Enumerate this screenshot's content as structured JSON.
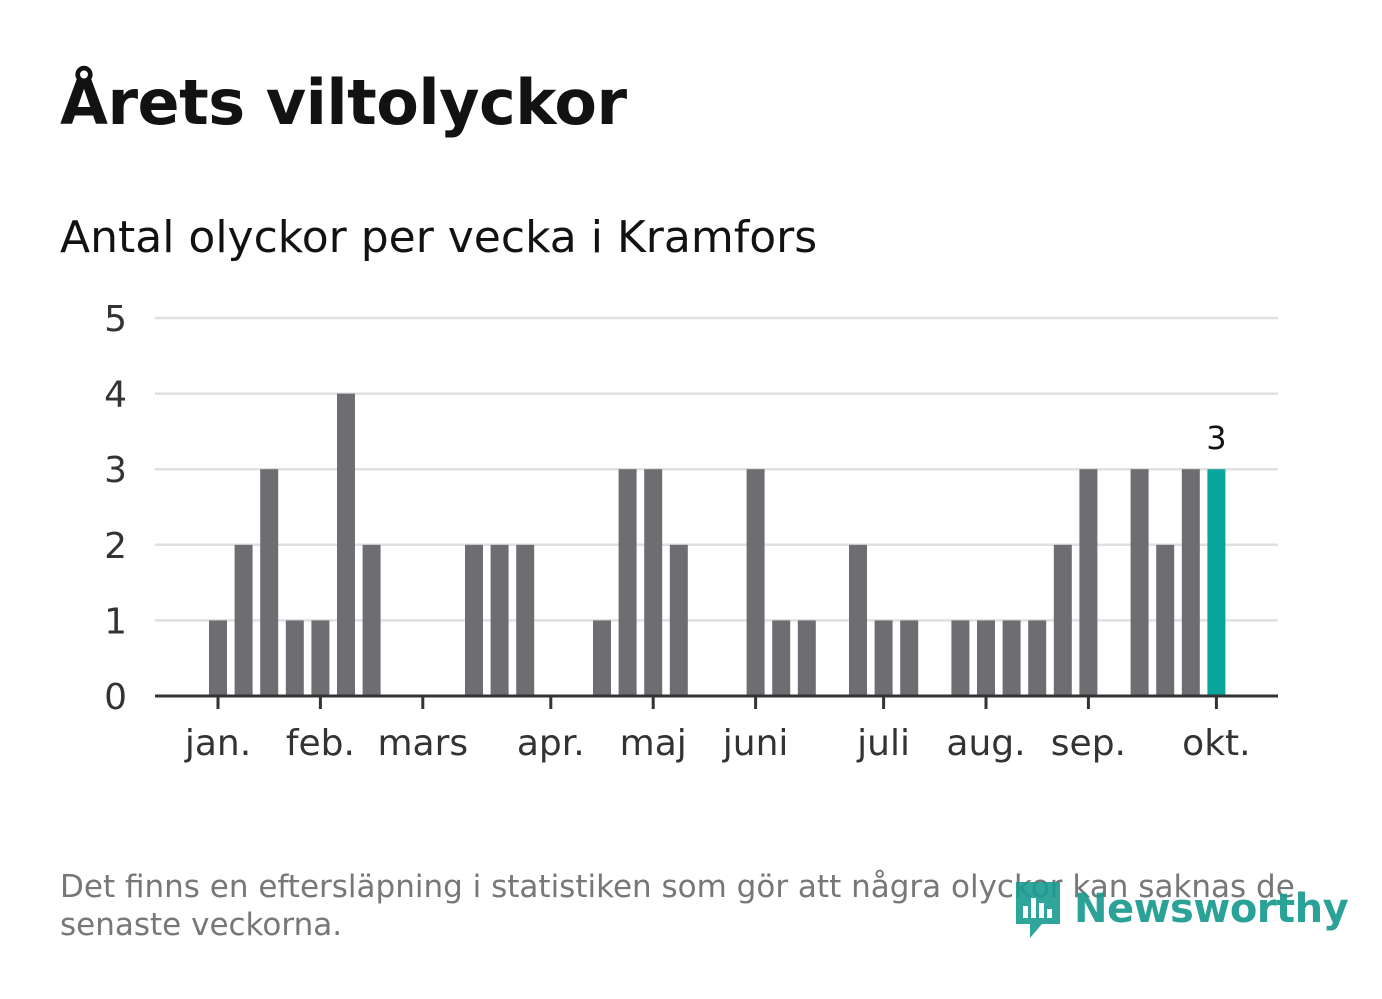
{
  "header": {
    "title": "Årets viltolyckor",
    "subtitle": "Antal olyckor per vecka i Kramfors"
  },
  "footer": {
    "note": "Det finns en eftersläpning i statistiken som gör att några olyckor kan saknas de senaste veckorna.",
    "brand": "Newsworthy"
  },
  "colors": {
    "bar": "#6e6d72",
    "highlight": "#0aa59a",
    "grid": "#e0e0e0",
    "axis": "#333333",
    "text": "#121212",
    "tick_text": "#333333"
  },
  "chart_data": {
    "type": "bar",
    "title": "Årets viltolyckor",
    "subtitle": "Antal olyckor per vecka i Kramfors",
    "xlabel": "",
    "ylabel": "",
    "ylim": [
      0,
      5
    ],
    "yticks": [
      0,
      1,
      2,
      3,
      4,
      5
    ],
    "grid": true,
    "weeks": [
      1,
      2,
      3,
      4,
      5,
      6,
      7,
      8,
      9,
      10,
      11,
      12,
      13,
      14,
      15,
      16,
      17,
      18,
      19,
      20,
      21,
      22,
      23,
      24,
      25,
      26,
      27,
      28,
      29,
      30,
      31,
      32,
      33,
      34,
      35,
      36,
      37,
      38,
      39,
      40
    ],
    "values": [
      1,
      2,
      3,
      1,
      1,
      4,
      2,
      0,
      0,
      0,
      2,
      2,
      2,
      0,
      0,
      1,
      3,
      3,
      2,
      0,
      0,
      3,
      1,
      1,
      0,
      2,
      1,
      1,
      0,
      1,
      1,
      1,
      1,
      2,
      3,
      0,
      3,
      2,
      3,
      3
    ],
    "highlight_index": 39,
    "highlight_label": "3",
    "month_ticks": [
      {
        "label": "jan.",
        "week": 1
      },
      {
        "label": "feb.",
        "week": 5
      },
      {
        "label": "mars",
        "week": 9
      },
      {
        "label": "apr.",
        "week": 14
      },
      {
        "label": "maj",
        "week": 18
      },
      {
        "label": "juni",
        "week": 22
      },
      {
        "label": "juli",
        "week": 27
      },
      {
        "label": "aug.",
        "week": 31
      },
      {
        "label": "sep.",
        "week": 35
      },
      {
        "label": "okt.",
        "week": 40
      }
    ]
  }
}
